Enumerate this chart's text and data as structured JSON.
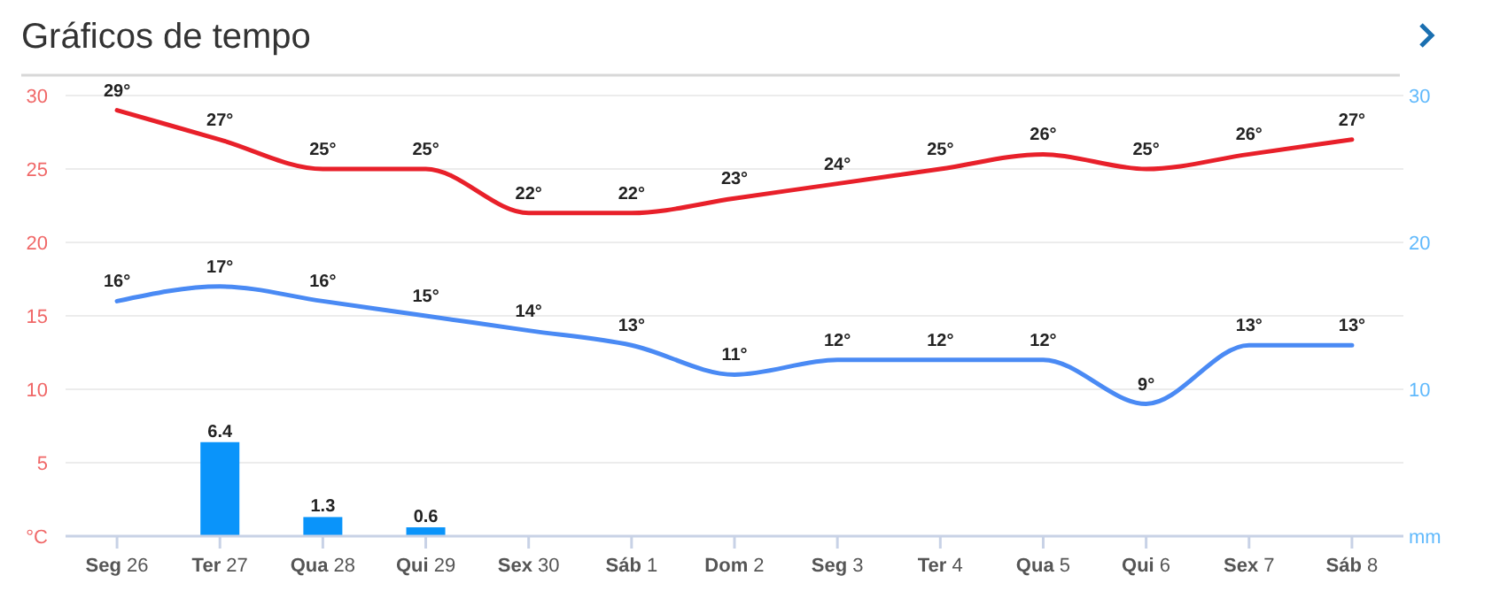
{
  "chart_data": {
    "type": "line",
    "title": "Gráficos de tempo",
    "categories": [
      "Seg 26",
      "Ter 27",
      "Qua 28",
      "Qui 29",
      "Sex 30",
      "Sáb 1",
      "Dom 2",
      "Seg 3",
      "Ter 4",
      "Qua 5",
      "Qui 6",
      "Sex 7",
      "Sáb 8"
    ],
    "series": [
      {
        "color": "#e8202a",
        "values": [
          29,
          27,
          25,
          25,
          22,
          22,
          23,
          24,
          25,
          26,
          25,
          26,
          27
        ],
        "value_labels": [
          "29°",
          "27°",
          "25°",
          "25°",
          "22°",
          "22°",
          "23°",
          "24°",
          "25°",
          "26°",
          "25°",
          "26°",
          "27°"
        ]
      },
      {
        "color": "#4a8af4",
        "values": [
          16,
          17,
          16,
          15,
          14,
          13,
          11,
          12,
          12,
          12,
          9,
          13,
          13
        ],
        "value_labels": [
          "16°",
          "17°",
          "16°",
          "15°",
          "14°",
          "13°",
          "11°",
          "12°",
          "12°",
          "12°",
          "9°",
          "13°",
          "13°"
        ]
      },
      {
        "type": "bar",
        "axis": "y2",
        "color": "#0a94fa",
        "values": [
          null,
          6.4,
          1.3,
          0.6,
          null,
          null,
          null,
          null,
          null,
          null,
          null,
          null,
          null
        ],
        "value_labels": [
          null,
          "6.4",
          "1.3",
          "0.6",
          null,
          null,
          null,
          null,
          null,
          null,
          null,
          null,
          null
        ]
      }
    ],
    "ylim": [
      0,
      30
    ],
    "yticks": [
      {
        "value": 0,
        "label": "°C"
      },
      5,
      10,
      15,
      20,
      25,
      30
    ],
    "y2lim": [
      0,
      30
    ],
    "y2ticks": [
      {
        "value": 0,
        "label": "mm"
      },
      10,
      20,
      30
    ],
    "grid": "y"
  }
}
